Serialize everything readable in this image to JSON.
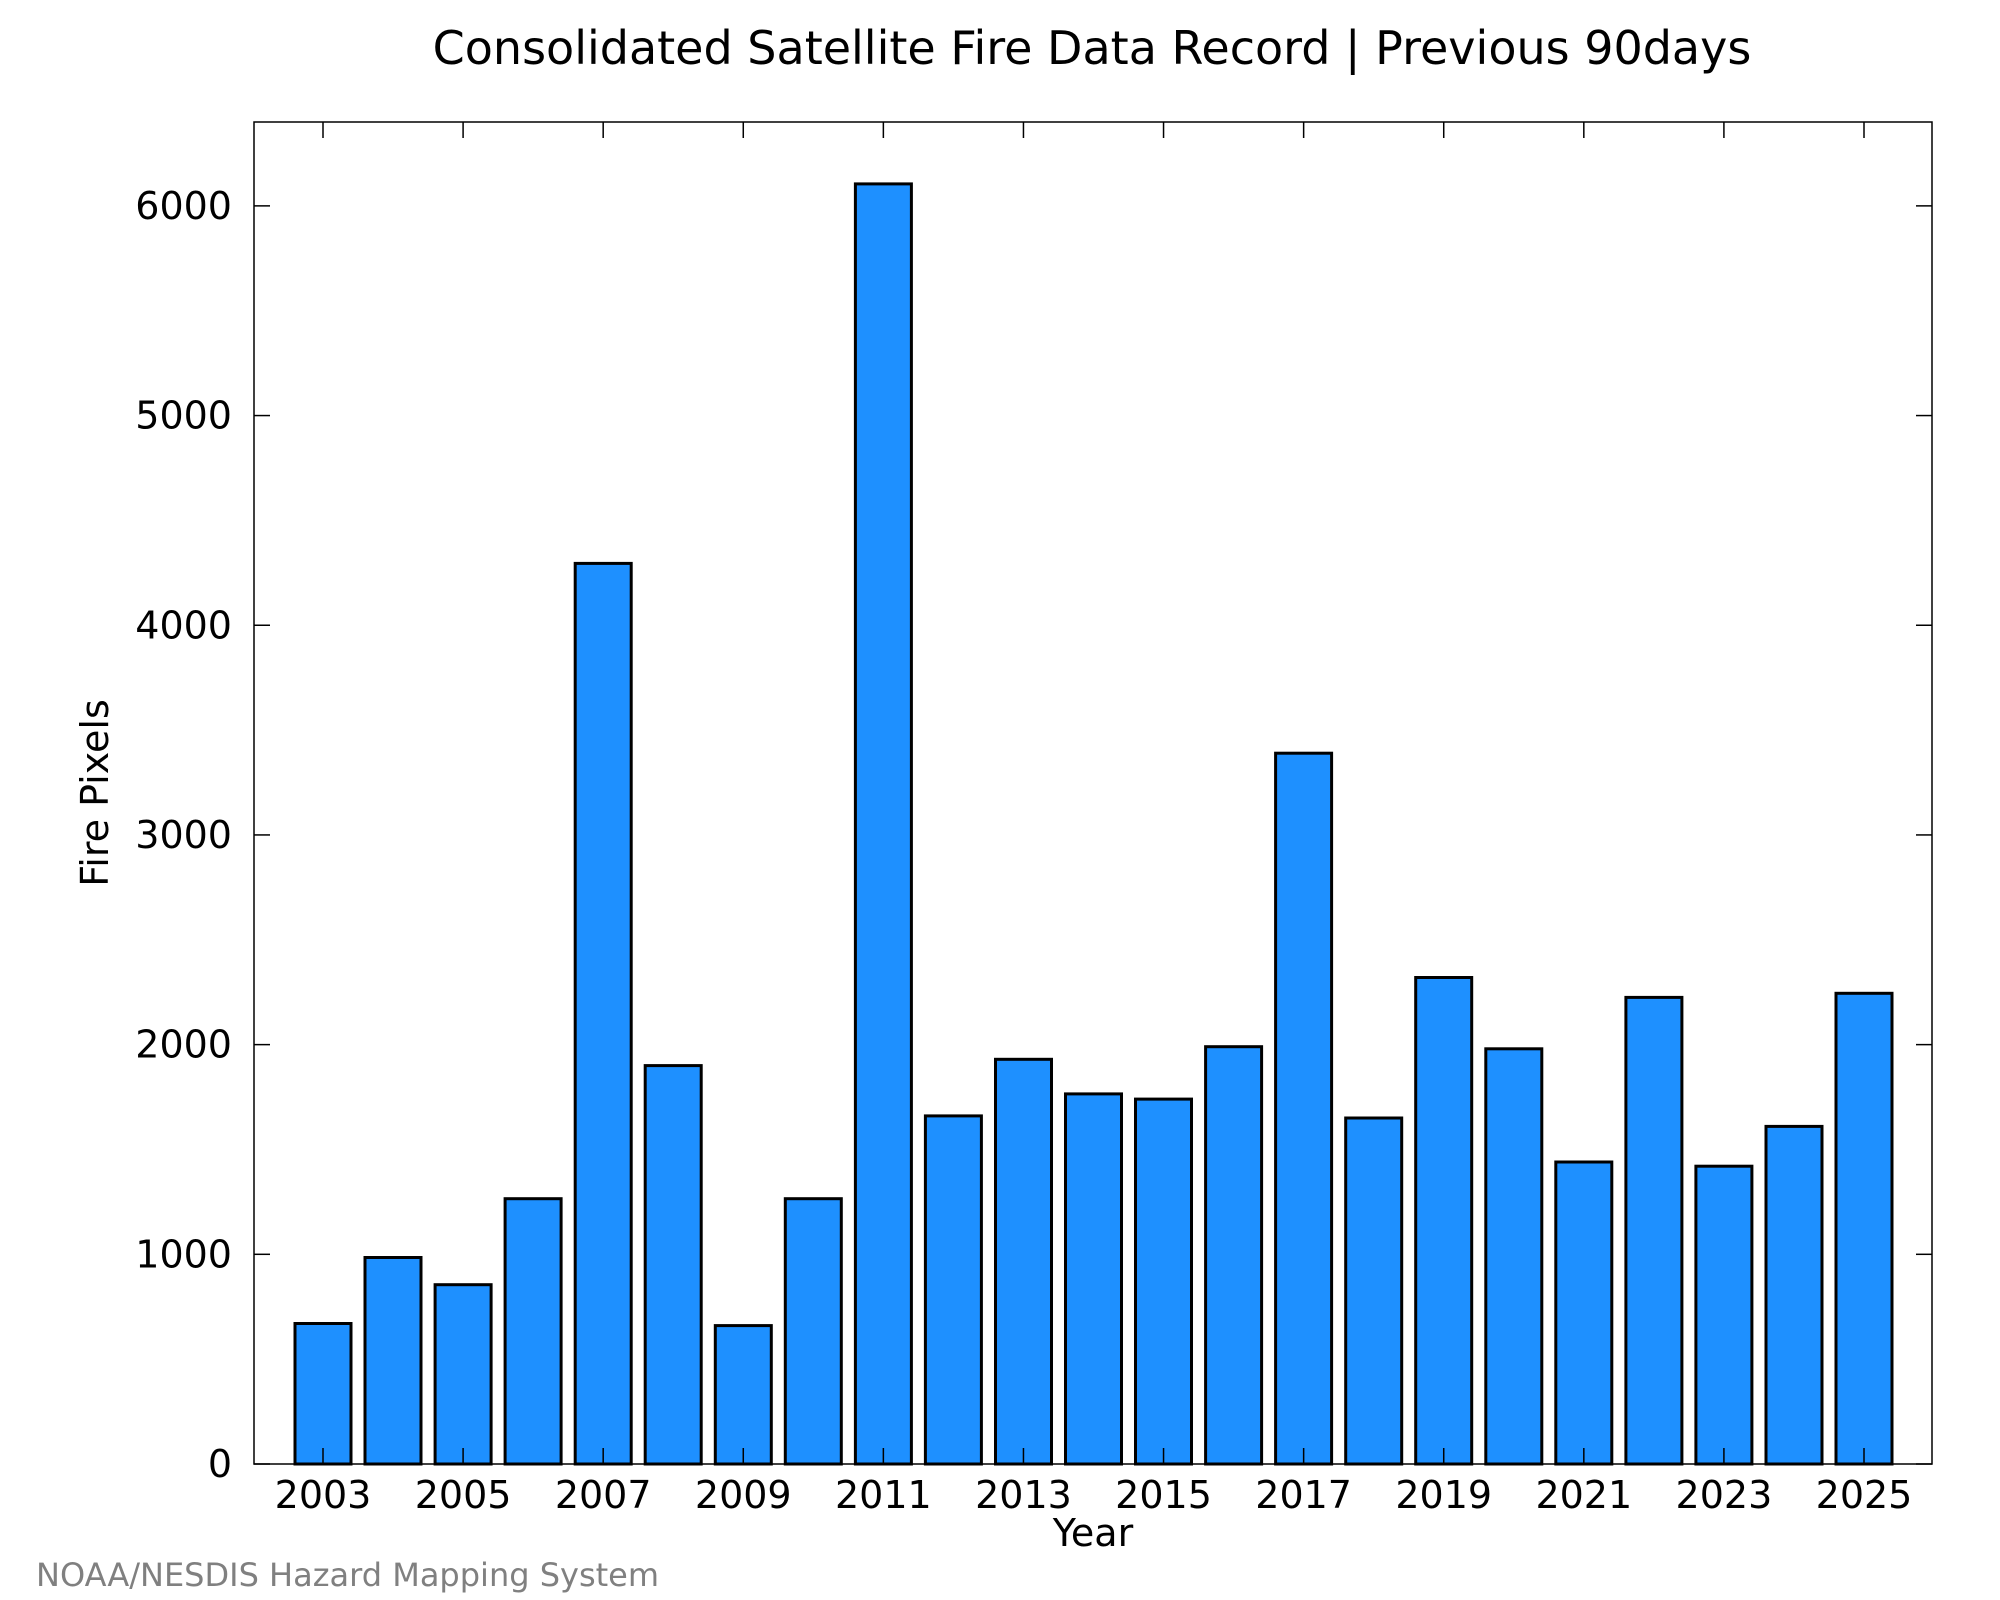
{
  "chart_data": {
    "type": "bar",
    "title": "Consolidated Satellite Fire Data Record | Previous 90days",
    "xlabel": "Year",
    "ylabel": "Fire Pixels",
    "credit": "NOAA/NESDIS Hazard Mapping System",
    "categories": [
      2003,
      2004,
      2005,
      2006,
      2007,
      2008,
      2009,
      2010,
      2011,
      2012,
      2013,
      2014,
      2015,
      2016,
      2017,
      2018,
      2019,
      2020,
      2021,
      2022,
      2023,
      2024,
      2025
    ],
    "values": [
      670,
      985,
      855,
      1265,
      4295,
      1900,
      660,
      1265,
      6105,
      1660,
      1930,
      1765,
      1740,
      1990,
      3390,
      1650,
      2320,
      1980,
      1440,
      2225,
      1420,
      1610,
      2245
    ],
    "x_tick_labels": [
      "2003",
      "2005",
      "2007",
      "2009",
      "2011",
      "2013",
      "2015",
      "2017",
      "2019",
      "2021",
      "2023",
      "2025"
    ],
    "y_tick_labels": [
      "0",
      "1000",
      "2000",
      "3000",
      "4000",
      "5000",
      "6000"
    ],
    "ylim": [
      0,
      6400
    ],
    "grid": false,
    "colors": {
      "bar_fill": "#1e90ff",
      "bar_edge": "#000000",
      "credit": "#808080"
    }
  }
}
